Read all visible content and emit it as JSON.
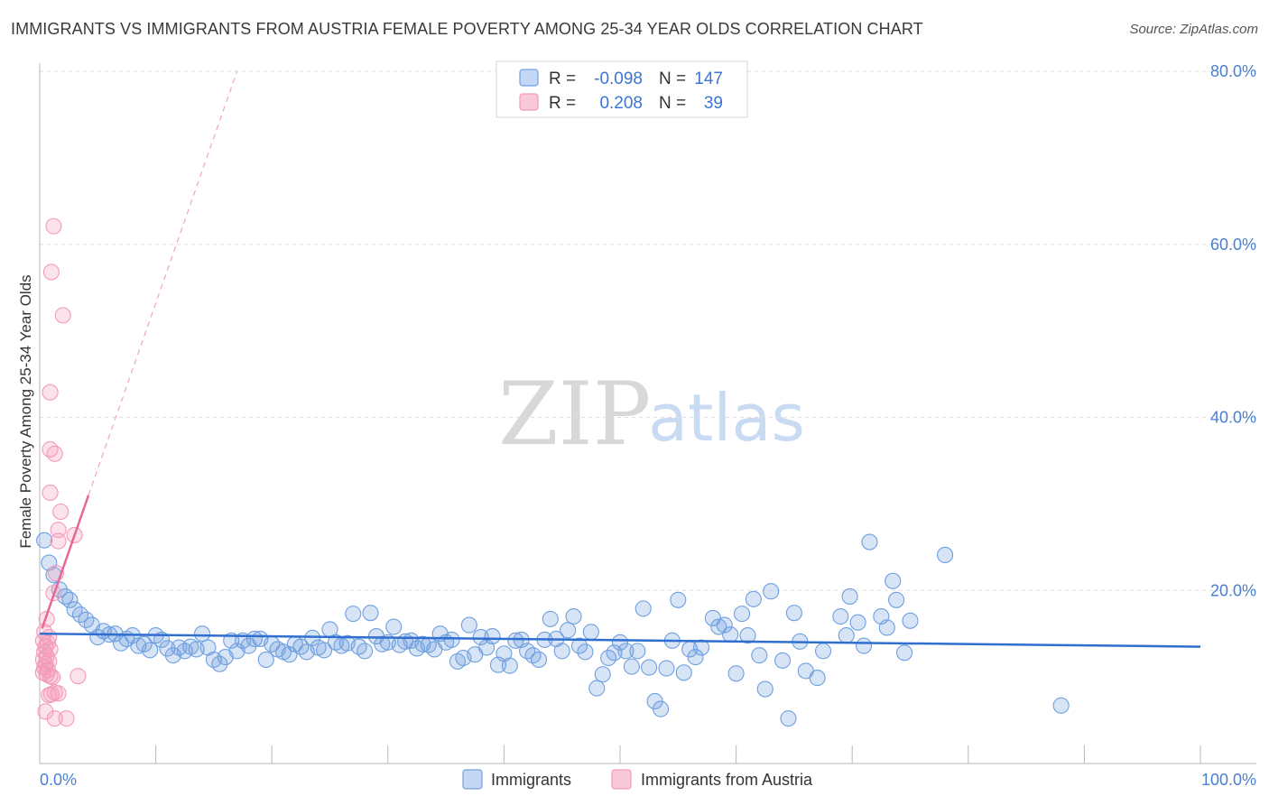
{
  "title": "IMMIGRANTS VS IMMIGRANTS FROM AUSTRIA FEMALE POVERTY AMONG 25-34 YEAR OLDS CORRELATION CHART",
  "source": "Source: ZipAtlas.com",
  "watermark": {
    "zip": "ZIP",
    "atlas": "atlas"
  },
  "legend": {
    "r_label": "R =",
    "n_label": "N =",
    "rows": [
      {
        "series": "Immigrants",
        "r": "-0.098",
        "n": "147"
      },
      {
        "series": "Immigrants from Austria",
        "r": "0.208",
        "n": "39"
      }
    ]
  },
  "chart_data": {
    "type": "scatter",
    "title": "IMMIGRANTS VS IMMIGRANTS FROM AUSTRIA FEMALE POVERTY AMONG 25-34 YEAR OLDS CORRELATION CHART",
    "xlabel": "",
    "ylabel": "Female Poverty Among 25-34 Year Olds",
    "xlim": [
      0,
      100
    ],
    "ylim": [
      0,
      80
    ],
    "x_tick_labels": [
      "0.0%",
      "100.0%"
    ],
    "y_ticks": [
      20,
      40,
      60,
      80
    ],
    "y_tick_labels": [
      "20.0%",
      "40.0%",
      "60.0%",
      "80.0%"
    ],
    "grid": true,
    "legend_position": "bottom-center",
    "colors": {
      "Immigrants": "#6f9fe0",
      "Immigrants from Austria": "#f39ab8",
      "Immigrants_line": "#2f6fd0",
      "Austria_line": "#e8679a"
    },
    "series": [
      {
        "name": "Immigrants",
        "trend": {
          "x": [
            0,
            100
          ],
          "y": [
            15.0,
            13.5
          ]
        },
        "points": [
          [
            0.4,
            25.8
          ],
          [
            0.8,
            23.2
          ],
          [
            1.2,
            21.8
          ],
          [
            1.7,
            20.1
          ],
          [
            2.2,
            19.3
          ],
          [
            2.6,
            18.9
          ],
          [
            3.0,
            17.8
          ],
          [
            3.5,
            17.2
          ],
          [
            4.0,
            16.6
          ],
          [
            4.5,
            16.0
          ],
          [
            5.0,
            14.6
          ],
          [
            5.5,
            15.3
          ],
          [
            6.0,
            14.9
          ],
          [
            6.5,
            15.0
          ],
          [
            7.0,
            13.9
          ],
          [
            7.5,
            14.4
          ],
          [
            8.0,
            14.8
          ],
          [
            8.5,
            13.6
          ],
          [
            9.0,
            13.8
          ],
          [
            9.5,
            13.1
          ],
          [
            10.0,
            14.8
          ],
          [
            10.5,
            14.3
          ],
          [
            11.0,
            13.3
          ],
          [
            11.5,
            12.5
          ],
          [
            12.0,
            13.4
          ],
          [
            12.5,
            13.0
          ],
          [
            13.0,
            13.5
          ],
          [
            13.5,
            13.2
          ],
          [
            14.0,
            15.0
          ],
          [
            14.5,
            13.4
          ],
          [
            15.0,
            12.0
          ],
          [
            15.5,
            11.5
          ],
          [
            16.0,
            12.3
          ],
          [
            16.5,
            14.2
          ],
          [
            17.0,
            13.0
          ],
          [
            17.5,
            14.2
          ],
          [
            18.0,
            13.6
          ],
          [
            18.5,
            14.4
          ],
          [
            19.0,
            14.4
          ],
          [
            19.5,
            12.0
          ],
          [
            20.0,
            13.8
          ],
          [
            20.5,
            13.2
          ],
          [
            21.0,
            12.9
          ],
          [
            21.5,
            12.6
          ],
          [
            22.0,
            13.8
          ],
          [
            22.5,
            13.5
          ],
          [
            23.0,
            12.9
          ],
          [
            23.5,
            14.5
          ],
          [
            24.0,
            13.4
          ],
          [
            24.5,
            13.1
          ],
          [
            25.0,
            15.5
          ],
          [
            25.5,
            14.0
          ],
          [
            26.0,
            13.6
          ],
          [
            26.5,
            13.9
          ],
          [
            27.0,
            17.3
          ],
          [
            27.5,
            13.5
          ],
          [
            28.0,
            13.0
          ],
          [
            28.5,
            17.4
          ],
          [
            29.0,
            14.7
          ],
          [
            29.5,
            13.8
          ],
          [
            30.0,
            14.0
          ],
          [
            30.5,
            15.8
          ],
          [
            31.0,
            13.7
          ],
          [
            31.5,
            14.1
          ],
          [
            32.0,
            14.2
          ],
          [
            32.5,
            13.3
          ],
          [
            33.0,
            13.8
          ],
          [
            33.5,
            13.7
          ],
          [
            34.0,
            13.2
          ],
          [
            34.5,
            15.0
          ],
          [
            35.0,
            14.0
          ],
          [
            35.5,
            14.3
          ],
          [
            36.0,
            11.8
          ],
          [
            36.5,
            12.2
          ],
          [
            37.0,
            16.0
          ],
          [
            37.5,
            12.6
          ],
          [
            38.0,
            14.6
          ],
          [
            38.5,
            13.4
          ],
          [
            39.0,
            14.7
          ],
          [
            39.5,
            11.4
          ],
          [
            40.0,
            12.7
          ],
          [
            40.5,
            11.3
          ],
          [
            41.0,
            14.2
          ],
          [
            41.5,
            14.3
          ],
          [
            42.0,
            13.0
          ],
          [
            42.5,
            12.5
          ],
          [
            43.0,
            12.0
          ],
          [
            43.5,
            14.3
          ],
          [
            44.0,
            16.7
          ],
          [
            44.5,
            14.4
          ],
          [
            45.0,
            13.0
          ],
          [
            45.5,
            15.4
          ],
          [
            46.0,
            17.0
          ],
          [
            46.5,
            13.6
          ],
          [
            47.0,
            12.9
          ],
          [
            47.5,
            15.2
          ],
          [
            48.0,
            8.7
          ],
          [
            48.5,
            10.3
          ],
          [
            49.0,
            12.2
          ],
          [
            49.5,
            12.8
          ],
          [
            50.0,
            14.0
          ],
          [
            50.5,
            13.0
          ],
          [
            51.0,
            11.2
          ],
          [
            51.5,
            13.0
          ],
          [
            52.0,
            17.9
          ],
          [
            52.5,
            11.1
          ],
          [
            53.0,
            7.2
          ],
          [
            53.5,
            6.3
          ],
          [
            54.0,
            11.0
          ],
          [
            54.5,
            14.2
          ],
          [
            55.0,
            18.9
          ],
          [
            55.5,
            10.5
          ],
          [
            56.0,
            13.2
          ],
          [
            56.5,
            12.3
          ],
          [
            57.0,
            13.4
          ],
          [
            58.0,
            16.8
          ],
          [
            58.5,
            15.8
          ],
          [
            59.0,
            16.0
          ],
          [
            59.5,
            14.9
          ],
          [
            60.0,
            10.4
          ],
          [
            60.5,
            17.3
          ],
          [
            61.0,
            14.8
          ],
          [
            61.5,
            19.0
          ],
          [
            62.0,
            12.5
          ],
          [
            62.5,
            8.6
          ],
          [
            63.0,
            19.9
          ],
          [
            64.0,
            11.9
          ],
          [
            64.5,
            5.2
          ],
          [
            65.0,
            17.4
          ],
          [
            65.5,
            14.1
          ],
          [
            66.0,
            10.7
          ],
          [
            67.0,
            9.9
          ],
          [
            67.5,
            13.0
          ],
          [
            69.0,
            17.0
          ],
          [
            69.5,
            14.8
          ],
          [
            69.8,
            19.3
          ],
          [
            70.5,
            16.3
          ],
          [
            71.0,
            13.6
          ],
          [
            71.5,
            25.6
          ],
          [
            72.5,
            17.0
          ],
          [
            73.0,
            15.7
          ],
          [
            73.5,
            21.1
          ],
          [
            73.8,
            18.9
          ],
          [
            74.5,
            12.8
          ],
          [
            75.0,
            16.5
          ],
          [
            78.0,
            24.1
          ],
          [
            88.0,
            6.7
          ]
        ]
      },
      {
        "name": "Immigrants from Austria",
        "trend": {
          "x": [
            0.2,
            4.2
          ],
          "y": [
            15.6,
            31.0
          ]
        },
        "trend_dashed": {
          "x": [
            4.2,
            17.0
          ],
          "y": [
            31.0,
            80.0
          ]
        },
        "points": [
          [
            1.2,
            62.1
          ],
          [
            1.0,
            56.8
          ],
          [
            2.0,
            51.8
          ],
          [
            0.9,
            42.9
          ],
          [
            0.9,
            36.3
          ],
          [
            1.3,
            35.8
          ],
          [
            0.9,
            31.3
          ],
          [
            1.8,
            29.1
          ],
          [
            1.6,
            27.0
          ],
          [
            3.0,
            26.4
          ],
          [
            1.6,
            25.7
          ],
          [
            1.4,
            22.0
          ],
          [
            1.2,
            19.7
          ],
          [
            0.6,
            16.7
          ],
          [
            0.4,
            15.2
          ],
          [
            0.8,
            14.6
          ],
          [
            0.3,
            14.2
          ],
          [
            0.7,
            13.9
          ],
          [
            0.5,
            13.5
          ],
          [
            0.9,
            13.2
          ],
          [
            0.4,
            12.9
          ],
          [
            0.6,
            12.4
          ],
          [
            0.3,
            12.0
          ],
          [
            0.8,
            11.8
          ],
          [
            0.5,
            11.5
          ],
          [
            0.4,
            11.1
          ],
          [
            0.7,
            10.8
          ],
          [
            0.3,
            10.5
          ],
          [
            0.6,
            10.3
          ],
          [
            0.9,
            10.1
          ],
          [
            1.1,
            10.0
          ],
          [
            3.3,
            10.1
          ],
          [
            1.3,
            8.2
          ],
          [
            1.6,
            8.1
          ],
          [
            0.8,
            7.9
          ],
          [
            1.0,
            8.0
          ],
          [
            1.3,
            5.2
          ],
          [
            2.3,
            5.2
          ],
          [
            0.5,
            6.0
          ]
        ]
      }
    ]
  }
}
